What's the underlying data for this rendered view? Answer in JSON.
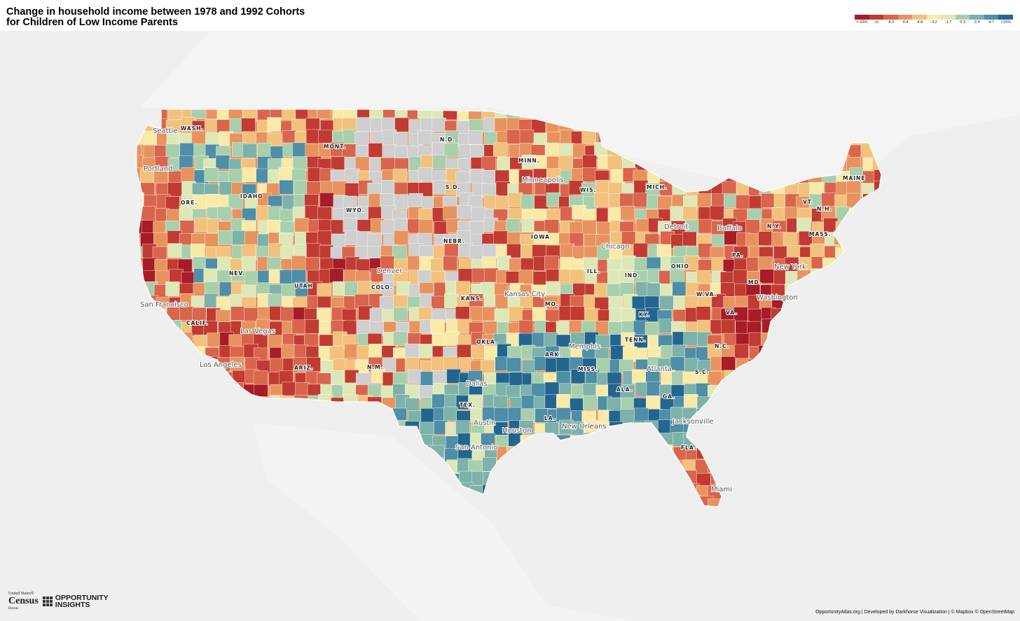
{
  "title": {
    "line1": "Change in household income between 1978 and 1992 Cohorts",
    "line2": "for Children of Low Income Parents"
  },
  "legend": {
    "colors": [
      "#a71c26",
      "#c13b32",
      "#d9654d",
      "#e8935f",
      "#f2c27c",
      "#f9eaa8",
      "#dde8b6",
      "#a8cfac",
      "#7db2aa",
      "#4e8ea7",
      "#22668f"
    ],
    "ticks": [
      "<-20%",
      "-11",
      "-8.3",
      "-6.4",
      "-4.8",
      "-3.2",
      "-1.7",
      "0.3",
      "2.4",
      "4.7",
      ">15%"
    ]
  },
  "cities": [
    "Seattle",
    "Portland",
    "San Francisco",
    "Las Vegas",
    "Los Angeles",
    "Denver",
    "Minneapolis",
    "Chicago",
    "Detroit",
    "Buffalo",
    "New York",
    "Washington",
    "Kansas City",
    "Memphis",
    "Atlanta",
    "Dallas",
    "Austin",
    "Houston",
    "San Antonio",
    "New Orleans",
    "Jacksonville",
    "Miami"
  ],
  "states": [
    "WASH.",
    "MONT.",
    "N.D.",
    "MINN.",
    "S.D.",
    "WIS.",
    "MICH.",
    "MAINE",
    "ORE.",
    "IDAHO",
    "WYO.",
    "VT.",
    "N.H.",
    "N.Y.",
    "MASS.",
    "IOWA",
    "NEBR.",
    "PA.",
    "NEV.",
    "UTAH",
    "COLO.",
    "ILL.",
    "IND.",
    "OHIO",
    "MD.",
    "W.VA.",
    "VA.",
    "KANS.",
    "MO.",
    "KY.",
    "CALIF.",
    "OKLA.",
    "ARK.",
    "TENN.",
    "N.C.",
    "S.C.",
    "ARIZ.",
    "N.M.",
    "MISS.",
    "ALA.",
    "GA.",
    "TEX.",
    "LA.",
    "FLA."
  ],
  "logos": {
    "census_small": "United States®",
    "census_big": "Census",
    "census_bureau": "Bureau",
    "oi_line1": "OPPORTUNITY",
    "oi_line2": "INSIGHTS"
  },
  "credit": "OpportunityAtlas.org | Developed by Darkhorse Visualization | © Mapbox © OpenStreetMap"
}
